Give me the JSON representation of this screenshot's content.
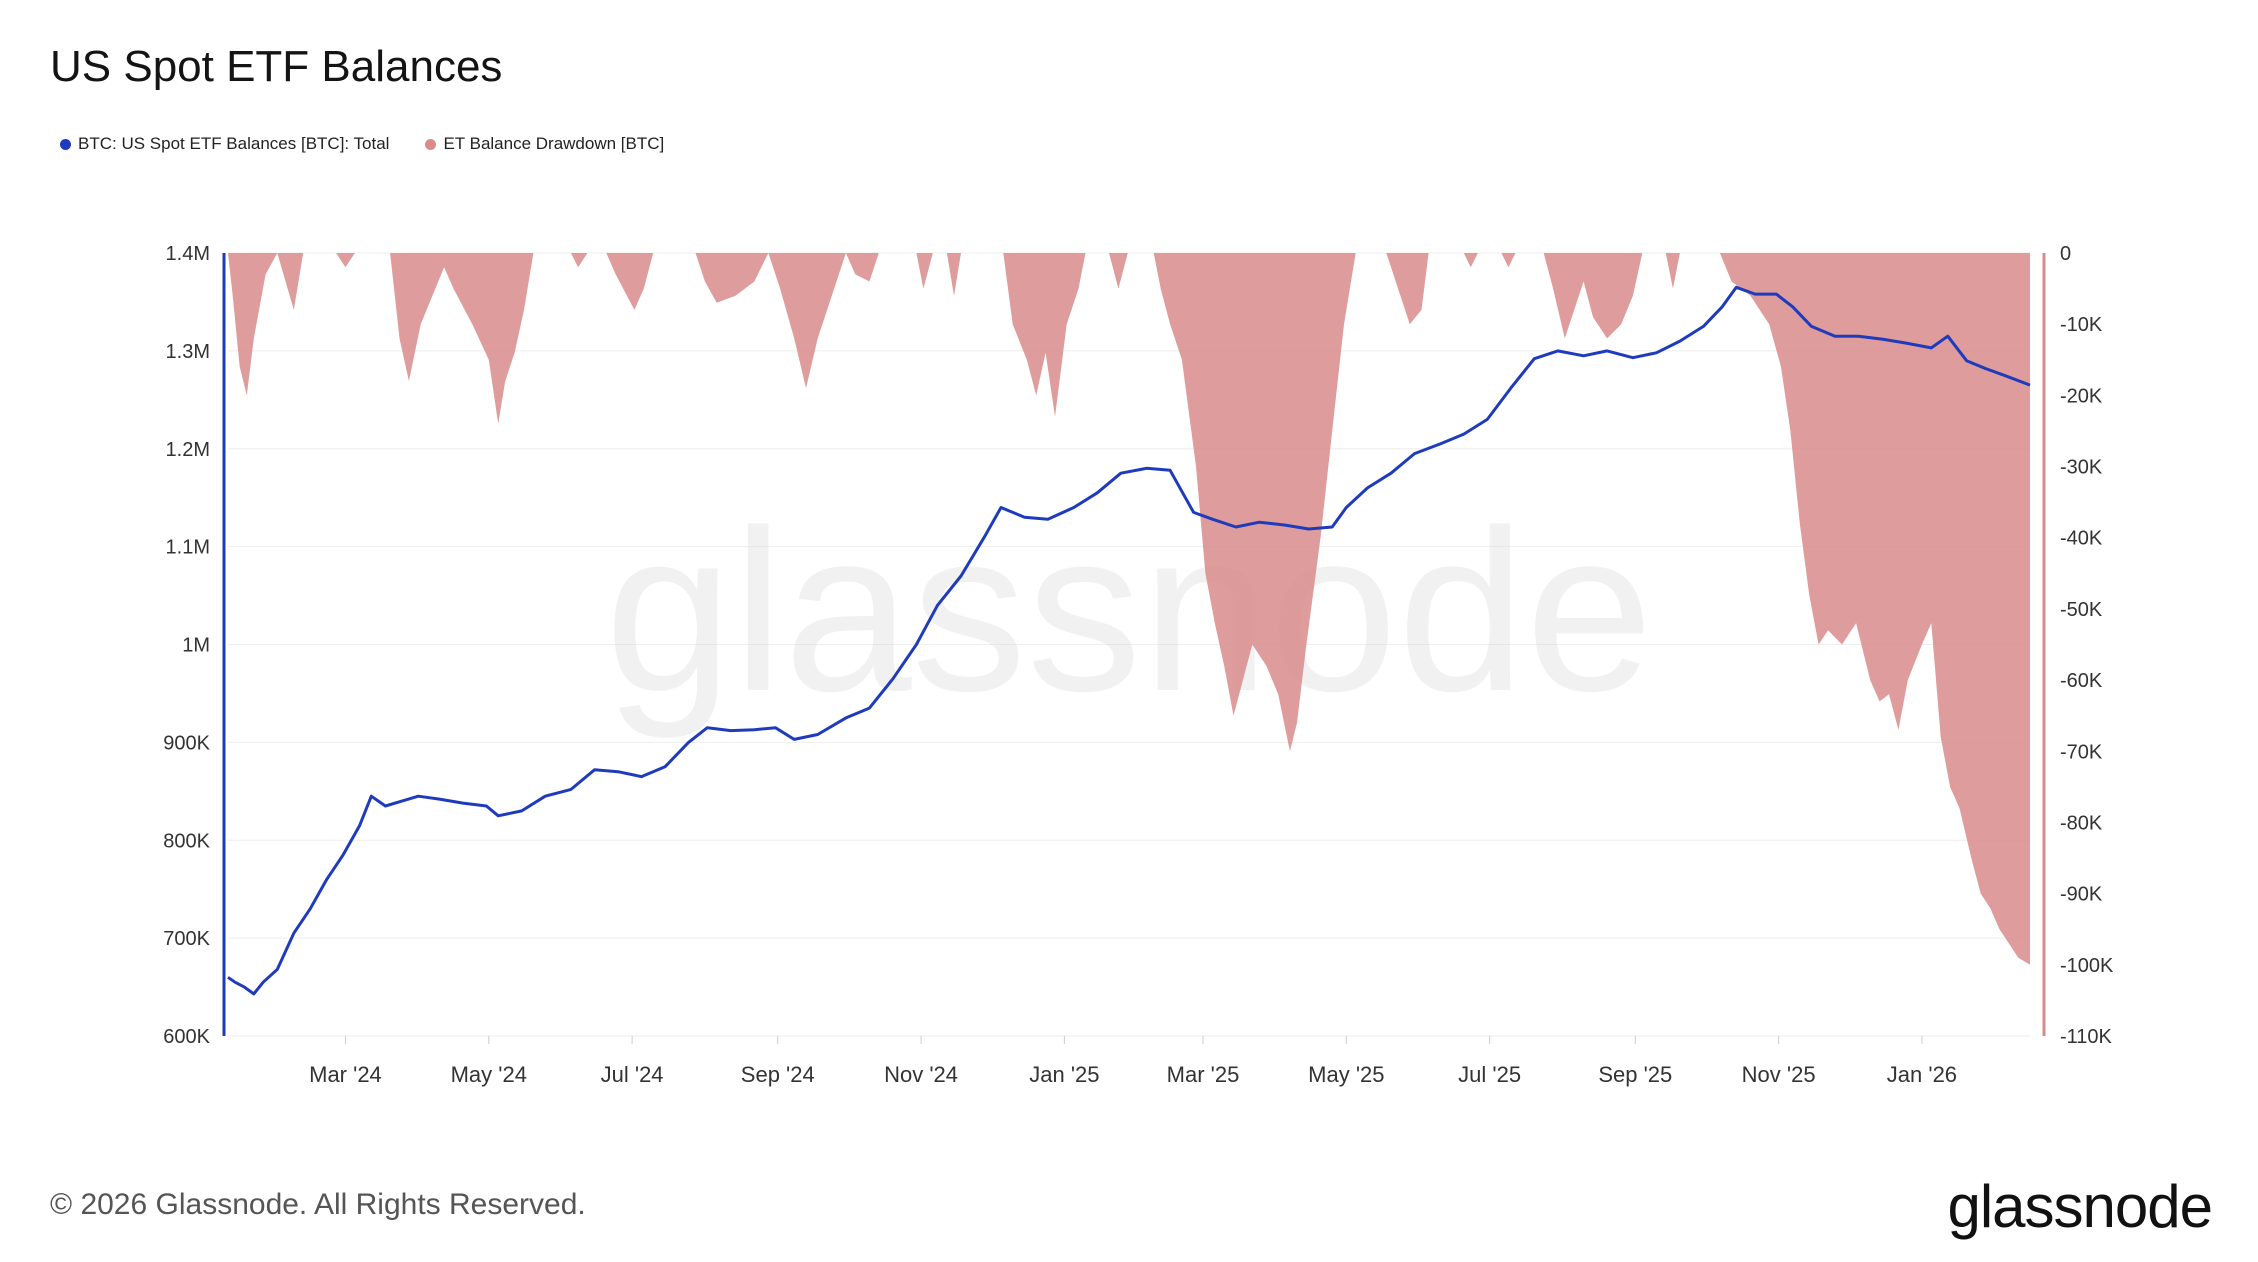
{
  "chart_data": {
    "type": "line",
    "title": "US Spot ETF Balances",
    "xlabel": "",
    "ylabel": "",
    "x_range": [
      "2024-01-11",
      "2026-02-16"
    ],
    "y_left": {
      "range": [
        600000,
        1400000
      ],
      "ticks": [
        {
          "value": 600000,
          "label": "600K"
        },
        {
          "value": 700000,
          "label": "700K"
        },
        {
          "value": 800000,
          "label": "800K"
        },
        {
          "value": 900000,
          "label": "900K"
        },
        {
          "value": 1000000,
          "label": "1M"
        },
        {
          "value": 1100000,
          "label": "1.1M"
        },
        {
          "value": 1200000,
          "label": "1.2M"
        },
        {
          "value": 1300000,
          "label": "1.3M"
        },
        {
          "value": 1400000,
          "label": "1.4M"
        }
      ]
    },
    "y_right": {
      "range": [
        -110000,
        0
      ],
      "ticks": [
        {
          "value": 0,
          "label": "0"
        },
        {
          "value": -10000,
          "label": "-10K"
        },
        {
          "value": -20000,
          "label": "-20K"
        },
        {
          "value": -30000,
          "label": "-30K"
        },
        {
          "value": -40000,
          "label": "-40K"
        },
        {
          "value": -50000,
          "label": "-50K"
        },
        {
          "value": -60000,
          "label": "-60K"
        },
        {
          "value": -70000,
          "label": "-70K"
        },
        {
          "value": -80000,
          "label": "-80K"
        },
        {
          "value": -90000,
          "label": "-90K"
        },
        {
          "value": -100000,
          "label": "-100K"
        },
        {
          "value": -110000,
          "label": "-110K"
        }
      ]
    },
    "x_ticks": [
      {
        "date": "2024-03-01",
        "label": "Mar '24"
      },
      {
        "date": "2024-05-01",
        "label": "May '24"
      },
      {
        "date": "2024-07-01",
        "label": "Jul '24"
      },
      {
        "date": "2024-09-01",
        "label": "Sep '24"
      },
      {
        "date": "2024-11-01",
        "label": "Nov '24"
      },
      {
        "date": "2025-01-01",
        "label": "Jan '25"
      },
      {
        "date": "2025-03-01",
        "label": "Mar '25"
      },
      {
        "date": "2025-05-01",
        "label": "May '25"
      },
      {
        "date": "2025-07-01",
        "label": "Jul '25"
      },
      {
        "date": "2025-09-01",
        "label": "Sep '25"
      },
      {
        "date": "2025-11-01",
        "label": "Nov '25"
      },
      {
        "date": "2026-01-01",
        "label": "Jan '26"
      }
    ],
    "grid": true,
    "legend_position": "top-left",
    "series": [
      {
        "name": "BTC: US Spot ETF Balances [BTC]: Total",
        "type": "line",
        "axis": "left",
        "color": "#1f3bbd",
        "points": [
          [
            "2024-01-11",
            660000
          ],
          [
            "2024-01-14",
            655000
          ],
          [
            "2024-01-18",
            650000
          ],
          [
            "2024-01-22",
            643000
          ],
          [
            "2024-01-26",
            655000
          ],
          [
            "2024-02-01",
            668000
          ],
          [
            "2024-02-08",
            705000
          ],
          [
            "2024-02-15",
            730000
          ],
          [
            "2024-02-22",
            760000
          ],
          [
            "2024-02-29",
            785000
          ],
          [
            "2024-03-07",
            815000
          ],
          [
            "2024-03-12",
            845000
          ],
          [
            "2024-03-18",
            835000
          ],
          [
            "2024-03-25",
            840000
          ],
          [
            "2024-04-01",
            845000
          ],
          [
            "2024-04-10",
            842000
          ],
          [
            "2024-04-20",
            838000
          ],
          [
            "2024-04-30",
            835000
          ],
          [
            "2024-05-05",
            825000
          ],
          [
            "2024-05-15",
            830000
          ],
          [
            "2024-05-25",
            845000
          ],
          [
            "2024-06-05",
            852000
          ],
          [
            "2024-06-15",
            872000
          ],
          [
            "2024-06-25",
            870000
          ],
          [
            "2024-07-05",
            865000
          ],
          [
            "2024-07-15",
            875000
          ],
          [
            "2024-07-25",
            900000
          ],
          [
            "2024-08-02",
            915000
          ],
          [
            "2024-08-12",
            912000
          ],
          [
            "2024-08-22",
            913000
          ],
          [
            "2024-08-31",
            915000
          ],
          [
            "2024-09-08",
            903000
          ],
          [
            "2024-09-18",
            908000
          ],
          [
            "2024-09-30",
            925000
          ],
          [
            "2024-10-10",
            935000
          ],
          [
            "2024-10-20",
            965000
          ],
          [
            "2024-10-30",
            1000000
          ],
          [
            "2024-11-08",
            1040000
          ],
          [
            "2024-11-18",
            1070000
          ],
          [
            "2024-11-28",
            1110000
          ],
          [
            "2024-12-05",
            1140000
          ],
          [
            "2024-12-15",
            1130000
          ],
          [
            "2024-12-25",
            1128000
          ],
          [
            "2025-01-05",
            1140000
          ],
          [
            "2025-01-15",
            1155000
          ],
          [
            "2025-01-25",
            1175000
          ],
          [
            "2025-02-05",
            1180000
          ],
          [
            "2025-02-15",
            1178000
          ],
          [
            "2025-02-25",
            1135000
          ],
          [
            "2025-03-05",
            1128000
          ],
          [
            "2025-03-15",
            1120000
          ],
          [
            "2025-03-25",
            1125000
          ],
          [
            "2025-04-05",
            1122000
          ],
          [
            "2025-04-15",
            1118000
          ],
          [
            "2025-04-25",
            1120000
          ],
          [
            "2025-05-01",
            1140000
          ],
          [
            "2025-05-10",
            1160000
          ],
          [
            "2025-05-20",
            1175000
          ],
          [
            "2025-05-30",
            1195000
          ],
          [
            "2025-06-10",
            1205000
          ],
          [
            "2025-06-20",
            1215000
          ],
          [
            "2025-06-30",
            1230000
          ],
          [
            "2025-07-10",
            1262000
          ],
          [
            "2025-07-20",
            1292000
          ],
          [
            "2025-07-30",
            1300000
          ],
          [
            "2025-08-10",
            1295000
          ],
          [
            "2025-08-20",
            1300000
          ],
          [
            "2025-08-31",
            1293000
          ],
          [
            "2025-09-10",
            1298000
          ],
          [
            "2025-09-20",
            1310000
          ],
          [
            "2025-09-30",
            1325000
          ],
          [
            "2025-10-08",
            1345000
          ],
          [
            "2025-10-14",
            1365000
          ],
          [
            "2025-10-22",
            1358000
          ],
          [
            "2025-10-31",
            1358000
          ],
          [
            "2025-11-07",
            1345000
          ],
          [
            "2025-11-15",
            1325000
          ],
          [
            "2025-11-25",
            1315000
          ],
          [
            "2025-12-05",
            1315000
          ],
          [
            "2025-12-15",
            1312000
          ],
          [
            "2025-12-25",
            1308000
          ],
          [
            "2026-01-05",
            1303000
          ],
          [
            "2026-01-12",
            1315000
          ],
          [
            "2026-01-20",
            1290000
          ],
          [
            "2026-01-28",
            1282000
          ],
          [
            "2026-02-05",
            1275000
          ],
          [
            "2026-02-16",
            1265000
          ]
        ]
      },
      {
        "name": "ET Balance Drawdown [BTC]",
        "type": "area",
        "axis": "right",
        "color": "#d98b8b",
        "points": [
          [
            "2024-01-11",
            0
          ],
          [
            "2024-01-13",
            -6000
          ],
          [
            "2024-01-16",
            -16000
          ],
          [
            "2024-01-19",
            -20000
          ],
          [
            "2024-01-22",
            -12000
          ],
          [
            "2024-01-27",
            -3000
          ],
          [
            "2024-02-01",
            0
          ],
          [
            "2024-02-08",
            -8000
          ],
          [
            "2024-02-12",
            0
          ],
          [
            "2024-02-26",
            0
          ],
          [
            "2024-03-01",
            -2000
          ],
          [
            "2024-03-05",
            0
          ],
          [
            "2024-03-20",
            0
          ],
          [
            "2024-03-24",
            -12000
          ],
          [
            "2024-03-28",
            -18000
          ],
          [
            "2024-04-02",
            -10000
          ],
          [
            "2024-04-07",
            -6000
          ],
          [
            "2024-04-12",
            -2000
          ],
          [
            "2024-04-16",
            -5000
          ],
          [
            "2024-04-24",
            -10000
          ],
          [
            "2024-05-01",
            -15000
          ],
          [
            "2024-05-05",
            -24000
          ],
          [
            "2024-05-08",
            -18000
          ],
          [
            "2024-05-12",
            -14000
          ],
          [
            "2024-05-16",
            -8000
          ],
          [
            "2024-05-20",
            0
          ],
          [
            "2024-06-05",
            0
          ],
          [
            "2024-06-08",
            -2000
          ],
          [
            "2024-06-12",
            0
          ],
          [
            "2024-06-20",
            0
          ],
          [
            "2024-06-24",
            -3000
          ],
          [
            "2024-07-02",
            -8000
          ],
          [
            "2024-07-06",
            -5000
          ],
          [
            "2024-07-10",
            0
          ],
          [
            "2024-07-28",
            0
          ],
          [
            "2024-08-01",
            -4000
          ],
          [
            "2024-08-06",
            -7000
          ],
          [
            "2024-08-14",
            -6000
          ],
          [
            "2024-08-22",
            -4000
          ],
          [
            "2024-08-28",
            0
          ],
          [
            "2024-09-02",
            -5000
          ],
          [
            "2024-09-08",
            -12000
          ],
          [
            "2024-09-13",
            -19000
          ],
          [
            "2024-09-18",
            -12000
          ],
          [
            "2024-09-24",
            -6000
          ],
          [
            "2024-09-30",
            0
          ],
          [
            "2024-10-04",
            -3000
          ],
          [
            "2024-10-10",
            -4000
          ],
          [
            "2024-10-14",
            0
          ],
          [
            "2024-10-30",
            0
          ],
          [
            "2024-11-02",
            -5000
          ],
          [
            "2024-11-06",
            0
          ],
          [
            "2024-11-12",
            0
          ],
          [
            "2024-11-15",
            -6000
          ],
          [
            "2024-11-18",
            0
          ],
          [
            "2024-12-06",
            0
          ],
          [
            "2024-12-10",
            -10000
          ],
          [
            "2024-12-16",
            -15000
          ],
          [
            "2024-12-20",
            -20000
          ],
          [
            "2024-12-24",
            -14000
          ],
          [
            "2024-12-28",
            -23000
          ],
          [
            "2025-01-02",
            -10000
          ],
          [
            "2025-01-07",
            -5000
          ],
          [
            "2025-01-10",
            0
          ],
          [
            "2025-01-20",
            0
          ],
          [
            "2025-01-24",
            -5000
          ],
          [
            "2025-01-28",
            0
          ],
          [
            "2025-02-08",
            0
          ],
          [
            "2025-02-11",
            -5000
          ],
          [
            "2025-02-15",
            -10000
          ],
          [
            "2025-02-20",
            -15000
          ],
          [
            "2025-02-26",
            -30000
          ],
          [
            "2025-03-02",
            -45000
          ],
          [
            "2025-03-06",
            -52000
          ],
          [
            "2025-03-10",
            -58000
          ],
          [
            "2025-03-14",
            -65000
          ],
          [
            "2025-03-18",
            -60000
          ],
          [
            "2025-03-22",
            -55000
          ],
          [
            "2025-03-28",
            -58000
          ],
          [
            "2025-04-02",
            -62000
          ],
          [
            "2025-04-07",
            -70000
          ],
          [
            "2025-04-10",
            -66000
          ],
          [
            "2025-04-14",
            -55000
          ],
          [
            "2025-04-20",
            -40000
          ],
          [
            "2025-04-25",
            -25000
          ],
          [
            "2025-04-30",
            -10000
          ],
          [
            "2025-05-05",
            0
          ],
          [
            "2025-05-18",
            0
          ],
          [
            "2025-05-22",
            -4000
          ],
          [
            "2025-05-28",
            -10000
          ],
          [
            "2025-06-02",
            -8000
          ],
          [
            "2025-06-05",
            0
          ],
          [
            "2025-06-20",
            0
          ],
          [
            "2025-06-23",
            -2000
          ],
          [
            "2025-06-26",
            0
          ],
          [
            "2025-07-06",
            0
          ],
          [
            "2025-07-09",
            -2000
          ],
          [
            "2025-07-12",
            0
          ],
          [
            "2025-07-24",
            0
          ],
          [
            "2025-07-28",
            -5000
          ],
          [
            "2025-08-02",
            -12000
          ],
          [
            "2025-08-06",
            -8000
          ],
          [
            "2025-08-10",
            -4000
          ],
          [
            "2025-08-14",
            -9000
          ],
          [
            "2025-08-20",
            -12000
          ],
          [
            "2025-08-26",
            -10000
          ],
          [
            "2025-08-31",
            -6000
          ],
          [
            "2025-09-04",
            0
          ],
          [
            "2025-09-14",
            0
          ],
          [
            "2025-09-17",
            -5000
          ],
          [
            "2025-09-20",
            0
          ],
          [
            "2025-10-07",
            0
          ],
          [
            "2025-10-12",
            -4000
          ],
          [
            "2025-10-20",
            -6000
          ],
          [
            "2025-10-28",
            -10000
          ],
          [
            "2025-11-02",
            -16000
          ],
          [
            "2025-11-06",
            -25000
          ],
          [
            "2025-11-10",
            -38000
          ],
          [
            "2025-11-14",
            -48000
          ],
          [
            "2025-11-18",
            -55000
          ],
          [
            "2025-11-22",
            -53000
          ],
          [
            "2025-11-28",
            -55000
          ],
          [
            "2025-12-04",
            -52000
          ],
          [
            "2025-12-10",
            -60000
          ],
          [
            "2025-12-14",
            -63000
          ],
          [
            "2025-12-18",
            -62000
          ],
          [
            "2025-12-22",
            -67000
          ],
          [
            "2025-12-26",
            -60000
          ],
          [
            "2026-01-01",
            -55000
          ],
          [
            "2026-01-05",
            -52000
          ],
          [
            "2026-01-09",
            -68000
          ],
          [
            "2026-01-13",
            -75000
          ],
          [
            "2026-01-17",
            -78000
          ],
          [
            "2026-01-22",
            -85000
          ],
          [
            "2026-01-26",
            -90000
          ],
          [
            "2026-01-30",
            -92000
          ],
          [
            "2026-02-03",
            -95000
          ],
          [
            "2026-02-07",
            -97000
          ],
          [
            "2026-02-11",
            -99000
          ],
          [
            "2026-02-16",
            -100000
          ]
        ]
      }
    ],
    "watermark": "glassnode"
  },
  "footer": {
    "copyright": "© 2026 Glassnode. All Rights Reserved.",
    "brand": "glassnode"
  },
  "colors": {
    "line": "#1f3bbd",
    "area": "#d98b8b",
    "left_axis": "#1f3bbd",
    "right_axis": "#d98b8b",
    "grid": "#eeeeee"
  }
}
